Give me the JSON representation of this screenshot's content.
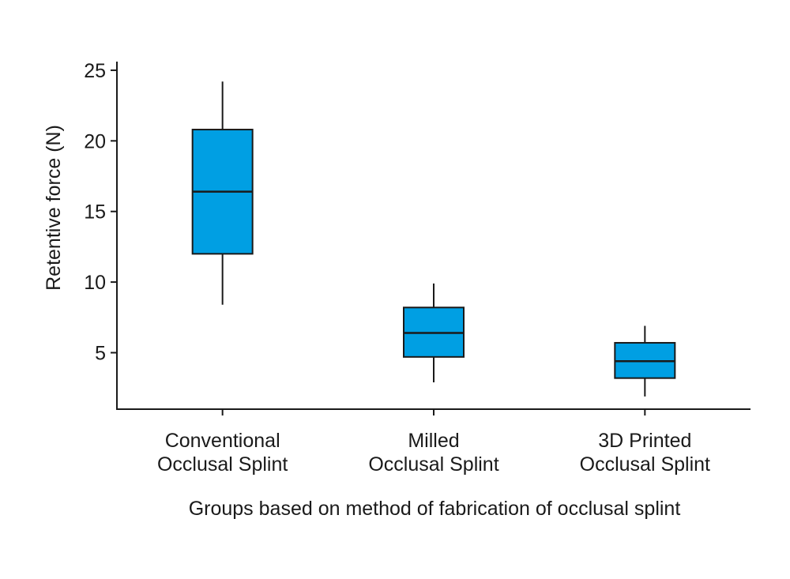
{
  "chart_data": {
    "type": "box",
    "xlabel": "Groups based on method of fabrication of occlusal splint",
    "ylabel": "Retentive force (N)",
    "ylim": [
      1,
      25.5
    ],
    "yticks": [
      5,
      10,
      15,
      20,
      25
    ],
    "box_color": "#009fe3",
    "categories": [
      {
        "label_lines": [
          "Conventional",
          "Occlusal Splint"
        ],
        "min": 8.4,
        "q1": 12.0,
        "median": 16.4,
        "q3": 20.8,
        "max": 24.2
      },
      {
        "label_lines": [
          "Milled",
          "Occlusal Splint"
        ],
        "min": 2.9,
        "q1": 4.7,
        "median": 6.4,
        "q3": 8.2,
        "max": 9.9
      },
      {
        "label_lines": [
          "3D Printed",
          "Occlusal Splint"
        ],
        "min": 1.9,
        "q1": 3.2,
        "median": 4.4,
        "q3": 5.7,
        "max": 6.9
      }
    ]
  }
}
